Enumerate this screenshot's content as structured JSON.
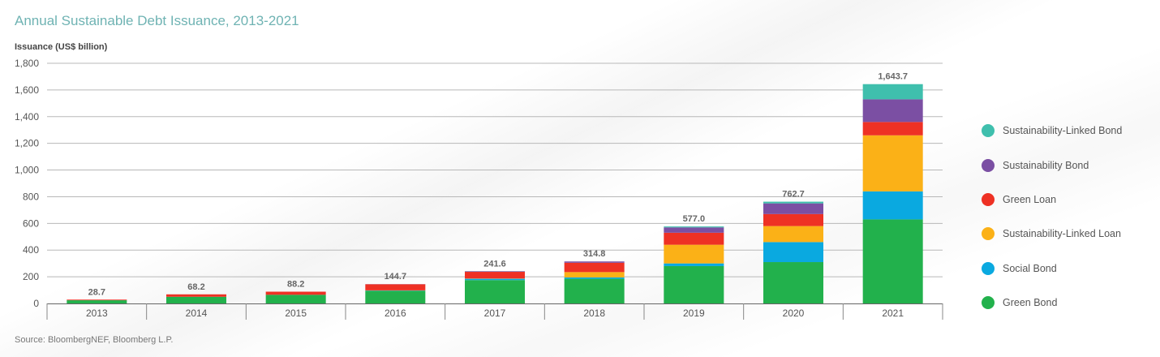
{
  "title": "Annual Sustainable Debt Issuance, 2013-2021",
  "source": "Source: BloombergNEF, Bloomberg L.P.",
  "chart_data": {
    "type": "bar",
    "stacked": true,
    "ylabel": "Issuance (US$ billion)",
    "ylim": [
      0,
      1800
    ],
    "yticks": [
      0,
      200,
      400,
      600,
      800,
      1000,
      1200,
      1400,
      1600,
      1800
    ],
    "ytick_labels": [
      "0",
      "200",
      "400",
      "600",
      "800",
      "1,000",
      "1,200",
      "1,400",
      "1,600",
      "1,800"
    ],
    "grid": true,
    "legend_position": "right",
    "categories": [
      "2013",
      "2014",
      "2015",
      "2016",
      "2017",
      "2018",
      "2019",
      "2020",
      "2021"
    ],
    "totals": [
      "28.7",
      "68.2",
      "88.2",
      "144.7",
      "241.6",
      "314.8",
      "577.0",
      "762.7",
      "1,643.7"
    ],
    "series": [
      {
        "name": "Green Bond",
        "color": "#22b14c",
        "values": [
          24,
          50,
          65,
          95,
          175,
          185,
          280,
          310,
          630
        ]
      },
      {
        "name": "Social Bond",
        "color": "#0aa9e0",
        "values": [
          0,
          0,
          0,
          2,
          10,
          10,
          20,
          150,
          210
        ]
      },
      {
        "name": "Sustainability-Linked Loan",
        "color": "#fbb117",
        "values": [
          0,
          0,
          0,
          1,
          2,
          40,
          140,
          120,
          420
        ]
      },
      {
        "name": "Green Loan",
        "color": "#ee3124",
        "values": [
          4.7,
          18.2,
          23.2,
          45.7,
          50,
          70,
          90,
          90,
          100
        ]
      },
      {
        "name": "Sustainability Bond",
        "color": "#7b4fa3",
        "values": [
          0,
          0,
          0,
          1,
          4,
          9.8,
          40,
          80,
          170
        ]
      },
      {
        "name": "Sustainability-Linked Bond",
        "color": "#3fbfad",
        "values": [
          0,
          0,
          0,
          0,
          0.6,
          0,
          7,
          12.7,
          113.7
        ]
      }
    ]
  }
}
